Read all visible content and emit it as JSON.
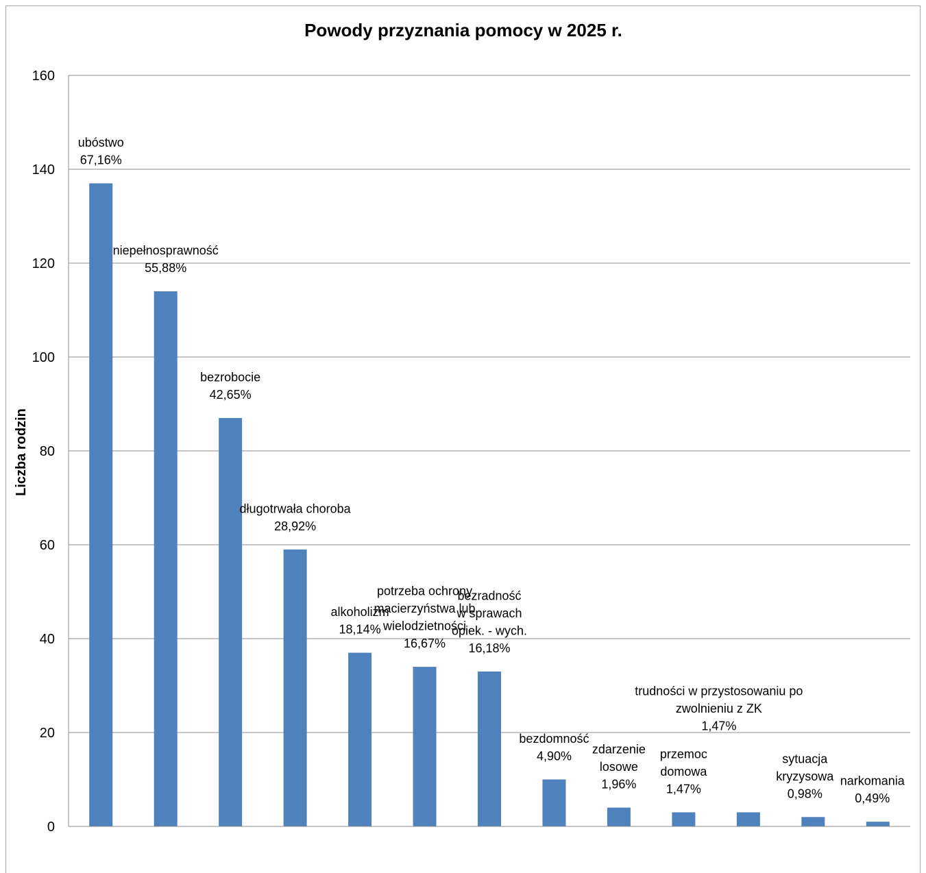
{
  "chart_data": {
    "type": "bar",
    "title": "Powody przyznania pomocy w 2025 r.",
    "xlabel": "",
    "ylabel": "Liczba rodzin",
    "ylim": [
      0,
      160
    ],
    "yticks": [
      0,
      20,
      40,
      60,
      80,
      100,
      120,
      140,
      160
    ],
    "grid": true,
    "legend": "none",
    "bar_color": "#4f81bd",
    "categories": [
      "ubóstwo",
      "niepełnosprawność",
      "bezrobocie",
      "długotrwała choroba",
      "alkoholizm",
      "potrzeba ochrony macierzyństwa lub wielodzietności",
      "bezradność w sprawach opiek. - wych.",
      "bezdomność",
      "zdarzenie losowe",
      "przemoc domowa",
      "trudności w przystosowaniu po zwolnieniu z ZK",
      "sytuacja kryzysowa",
      "narkomania"
    ],
    "values": [
      137,
      114,
      87,
      59,
      37,
      34,
      33,
      10,
      4,
      3,
      3,
      2,
      1
    ],
    "data_labels": [
      [
        "ubóstwo",
        "67,16%"
      ],
      [
        "niepełnosprawność",
        "55,88%"
      ],
      [
        "bezrobocie",
        "42,65%"
      ],
      [
        "długotrwała choroba",
        "28,92%"
      ],
      [
        "alkoholizm",
        "18,14%"
      ],
      [
        "potrzeba ochrony",
        "macierzyństwa lub",
        "wielodzietności",
        "16,67%"
      ],
      [
        "bezradność",
        "w sprawach",
        "opiek. - wych.",
        "16,18%"
      ],
      [
        "bezdomność",
        "4,90%"
      ],
      [
        "zdarzenie",
        "losowe",
        "1,96%"
      ],
      [
        "przemoc",
        "domowa",
        "1,47%"
      ],
      [
        "trudności w przystosowaniu po",
        "zwolnieniu z ZK",
        "1,47%"
      ],
      [
        "sytuacja",
        "kryzysowa",
        "0,98%"
      ],
      [
        "narkomania",
        "0,49%"
      ]
    ]
  }
}
